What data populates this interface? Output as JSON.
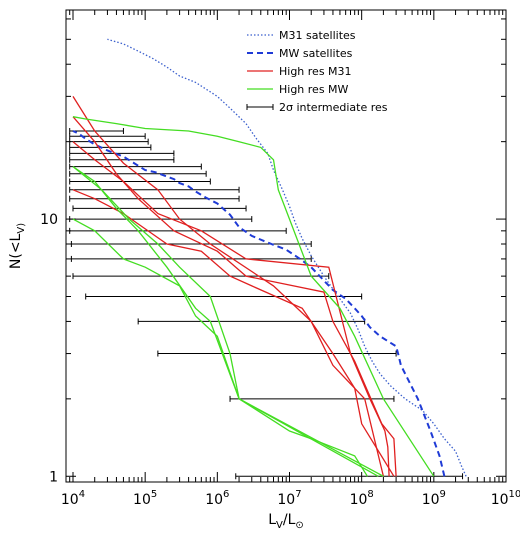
{
  "chart_data": {
    "type": "line",
    "xscale": "log",
    "yscale": "log",
    "xlim": [
      8000,
      10000000000
    ],
    "ylim": [
      0.95,
      65
    ],
    "xlabel": "L_V/L_⊙",
    "ylabel": "N(<L_V)",
    "x_tick_labels": [
      {
        "value": 10000,
        "base": "10",
        "exp": "4"
      },
      {
        "value": 100000,
        "base": "10",
        "exp": "5"
      },
      {
        "value": 1000000,
        "base": "10",
        "exp": "6"
      },
      {
        "value": 10000000,
        "base": "10",
        "exp": "7"
      },
      {
        "value": 100000000,
        "base": "10",
        "exp": "8"
      },
      {
        "value": 1000000000,
        "base": "10",
        "exp": "9"
      },
      {
        "value": 10000000000,
        "base": "10",
        "exp": "10"
      }
    ],
    "y_tick_labels": [
      {
        "value": 1,
        "label": "1"
      },
      {
        "value": 10,
        "label": "10"
      }
    ],
    "legend_position": "top-right",
    "legend": [
      {
        "name": "M31 satellites",
        "color": "#3a5fcd",
        "style": "dotted"
      },
      {
        "name": "MW satellites",
        "color": "#1f3bd6",
        "style": "dashed"
      },
      {
        "name": "High res M31",
        "color": "#e02020",
        "style": "solid"
      },
      {
        "name": "High res MW",
        "color": "#44dd22",
        "style": "solid"
      },
      {
        "name": "2σ intermediate res",
        "color": "#000000",
        "style": "errorbar"
      }
    ],
    "series": [
      {
        "name": "M31 satellites",
        "color": "#3a5fcd",
        "style": "dotted",
        "x": [
          2800000000,
          2400000000,
          2000000000,
          1400000000,
          1000000000,
          700000000,
          400000000,
          250000000,
          180000000,
          140000000,
          110000000,
          90000000,
          70000000,
          45000000,
          30000000,
          20000000,
          15000000,
          12000000,
          10000000,
          8000000,
          6000000,
          5000000,
          3500000,
          2500000,
          1500000,
          1000000,
          700000,
          500000,
          300000,
          200000,
          130000,
          80000,
          50000,
          30000
        ],
        "y": [
          1,
          1.1,
          1.25,
          1.4,
          1.6,
          1.8,
          2.0,
          2.25,
          2.5,
          2.8,
          3.2,
          3.7,
          4.3,
          5.1,
          6.0,
          7.2,
          8.4,
          9.7,
          11.2,
          13,
          15.5,
          18,
          20.5,
          23.5,
          27,
          30,
          32,
          34,
          36,
          39,
          42,
          45,
          48,
          50
        ]
      },
      {
        "name": "MW satellites",
        "color": "#1f3bd6",
        "style": "dashed",
        "x": [
          1400000000,
          1200000000,
          900000000,
          600000000,
          350000000,
          320000000,
          300000000,
          180000000,
          130000000,
          100000000,
          80000000,
          60000000,
          40000000,
          20000000,
          14000000,
          9000000,
          5000000,
          3000000,
          2000000,
          1500000,
          1000000,
          700000,
          500000,
          400000,
          300000,
          250000,
          180000,
          140000,
          100000,
          70000,
          50000,
          30000,
          20000,
          15000,
          12000,
          10000
        ],
        "y": [
          1,
          1.2,
          1.5,
          2.0,
          2.7,
          3.0,
          3.2,
          3.5,
          3.8,
          4.2,
          4.5,
          4.9,
          5.3,
          6.5,
          7.0,
          7.6,
          8.1,
          8.6,
          9.3,
          10.4,
          11.5,
          12.1,
          12.8,
          13.4,
          13.8,
          14.3,
          14.8,
          15.2,
          15.5,
          16.5,
          17.5,
          18.5,
          19.5,
          20.5,
          21.5,
          22
        ]
      },
      {
        "name": "High res M31",
        "color": "#e02020",
        "style": "solid",
        "x": [
          200000000,
          110000000,
          40000000,
          20000000,
          6000000,
          800000,
          300000,
          150000,
          50000,
          20000,
          10000
        ],
        "y": [
          1,
          2.0,
          2.7,
          4.0,
          5.5,
          8.0,
          10.0,
          13.0,
          16.5,
          22.0,
          30.0
        ]
      },
      {
        "name": "High res M31",
        "color": "#e02020",
        "style": "solid",
        "x": [
          300000000,
          280000000,
          190000000,
          80000000,
          40000000,
          30000000,
          2500000,
          1000000,
          250000,
          80000,
          40000,
          20000,
          10000
        ],
        "y": [
          1,
          1.4,
          1.6,
          2.8,
          4.0,
          5.2,
          6.0,
          7.5,
          9.0,
          12.0,
          15.0,
          20.0,
          25.0
        ]
      },
      {
        "name": "High res M31",
        "color": "#e02020",
        "style": "solid",
        "x": [
          240000000,
          230000000,
          210000000,
          130000000,
          70000000,
          35000000,
          2500000,
          600000,
          150000,
          50000,
          20000,
          10000
        ],
        "y": [
          1,
          1.3,
          1.5,
          2.0,
          3.0,
          6.5,
          7.0,
          9.0,
          10.5,
          14.0,
          17.0,
          20.0
        ]
      },
      {
        "name": "High res M31",
        "color": "#e02020",
        "style": "solid",
        "x": [
          280000000,
          100000000,
          80000000,
          40000000,
          15000000,
          3000000,
          1500000,
          600000,
          200000,
          50000,
          20000,
          10000
        ],
        "y": [
          1,
          1.6,
          2.2,
          3.0,
          4.5,
          5.5,
          6.0,
          7.5,
          8.0,
          10.5,
          12.0,
          13.0
        ]
      },
      {
        "name": "High res MW",
        "color": "#44dd22",
        "style": "solid",
        "x": [
          120000000,
          80000000,
          20000000,
          10000000,
          2000000,
          1500000,
          800000,
          300000,
          150000,
          60000,
          25000,
          10000
        ],
        "y": [
          1,
          1.2,
          1.4,
          1.5,
          2.0,
          3.0,
          5.0,
          6.5,
          8.0,
          10.0,
          13.0,
          16.0
        ]
      },
      {
        "name": "High res MW",
        "color": "#44dd22",
        "style": "solid",
        "x": [
          1000000000,
          200000000,
          80000000,
          50000000,
          20000000,
          10000000,
          7000000,
          6000000,
          4000000,
          2000000,
          1000000,
          400000,
          100000,
          40000,
          15000,
          10000
        ],
        "y": [
          1,
          2.0,
          3.5,
          4.5,
          6.0,
          10.0,
          13.0,
          17.0,
          19.0,
          20.0,
          21.0,
          22.0,
          22.5,
          23.5,
          24.5,
          25.0
        ]
      },
      {
        "name": "High res MW",
        "color": "#44dd22",
        "style": "solid",
        "x": [
          200000000,
          2000000,
          800000,
          500000,
          200000,
          80000,
          40000,
          20000,
          10000
        ],
        "y": [
          1,
          2.0,
          4.0,
          4.5,
          6.5,
          9.0,
          11.0,
          14.0,
          16.0
        ]
      },
      {
        "name": "High res MW",
        "color": "#44dd22",
        "style": "solid",
        "x": [
          170000000,
          2000000,
          1000000,
          500000,
          300000,
          100000,
          50000,
          20000,
          10000
        ],
        "y": [
          1,
          2.0,
          3.5,
          4.2,
          5.5,
          6.5,
          7.0,
          9.0,
          10.0
        ]
      }
    ],
    "error_bars": {
      "name": "2σ intermediate res",
      "color": "#000000",
      "bars": [
        {
          "y": 1,
          "x_low": 1800000,
          "x_high": 2500000000
        },
        {
          "y": 2,
          "x_low": 1500000,
          "x_high": 280000000
        },
        {
          "y": 3,
          "x_low": 150000,
          "x_high": 300000000
        },
        {
          "y": 4,
          "x_low": 80000,
          "x_high": 110000000
        },
        {
          "y": 5,
          "x_low": 15000,
          "x_high": 100000000
        },
        {
          "y": 6,
          "x_low": 10000,
          "x_high": 35000000
        },
        {
          "y": 7,
          "x_low": 9500,
          "x_high": 20000000
        },
        {
          "y": 8,
          "x_low": 9500,
          "x_high": 20000000
        },
        {
          "y": 9,
          "x_low": 9000,
          "x_high": 9000000
        },
        {
          "y": 10,
          "x_low": 9000,
          "x_high": 3000000
        },
        {
          "y": 11,
          "x_low": 10000,
          "x_high": 2500000
        },
        {
          "y": 12,
          "x_low": 9000,
          "x_high": 2000000
        },
        {
          "y": 13,
          "x_low": 9000,
          "x_high": 2000000
        },
        {
          "y": 14,
          "x_low": 9000,
          "x_high": 800000
        },
        {
          "y": 15,
          "x_low": 9000,
          "x_high": 700000
        },
        {
          "y": 16,
          "x_low": 9000,
          "x_high": 600000
        },
        {
          "y": 17,
          "x_low": 9000,
          "x_high": 250000
        },
        {
          "y": 18,
          "x_low": 9000,
          "x_high": 250000
        },
        {
          "y": 19,
          "x_low": 9000,
          "x_high": 120000
        },
        {
          "y": 20,
          "x_low": 9000,
          "x_high": 110000
        },
        {
          "y": 21,
          "x_low": 9000,
          "x_high": 100000
        },
        {
          "y": 22,
          "x_low": 9000,
          "x_high": 50000
        }
      ]
    }
  }
}
